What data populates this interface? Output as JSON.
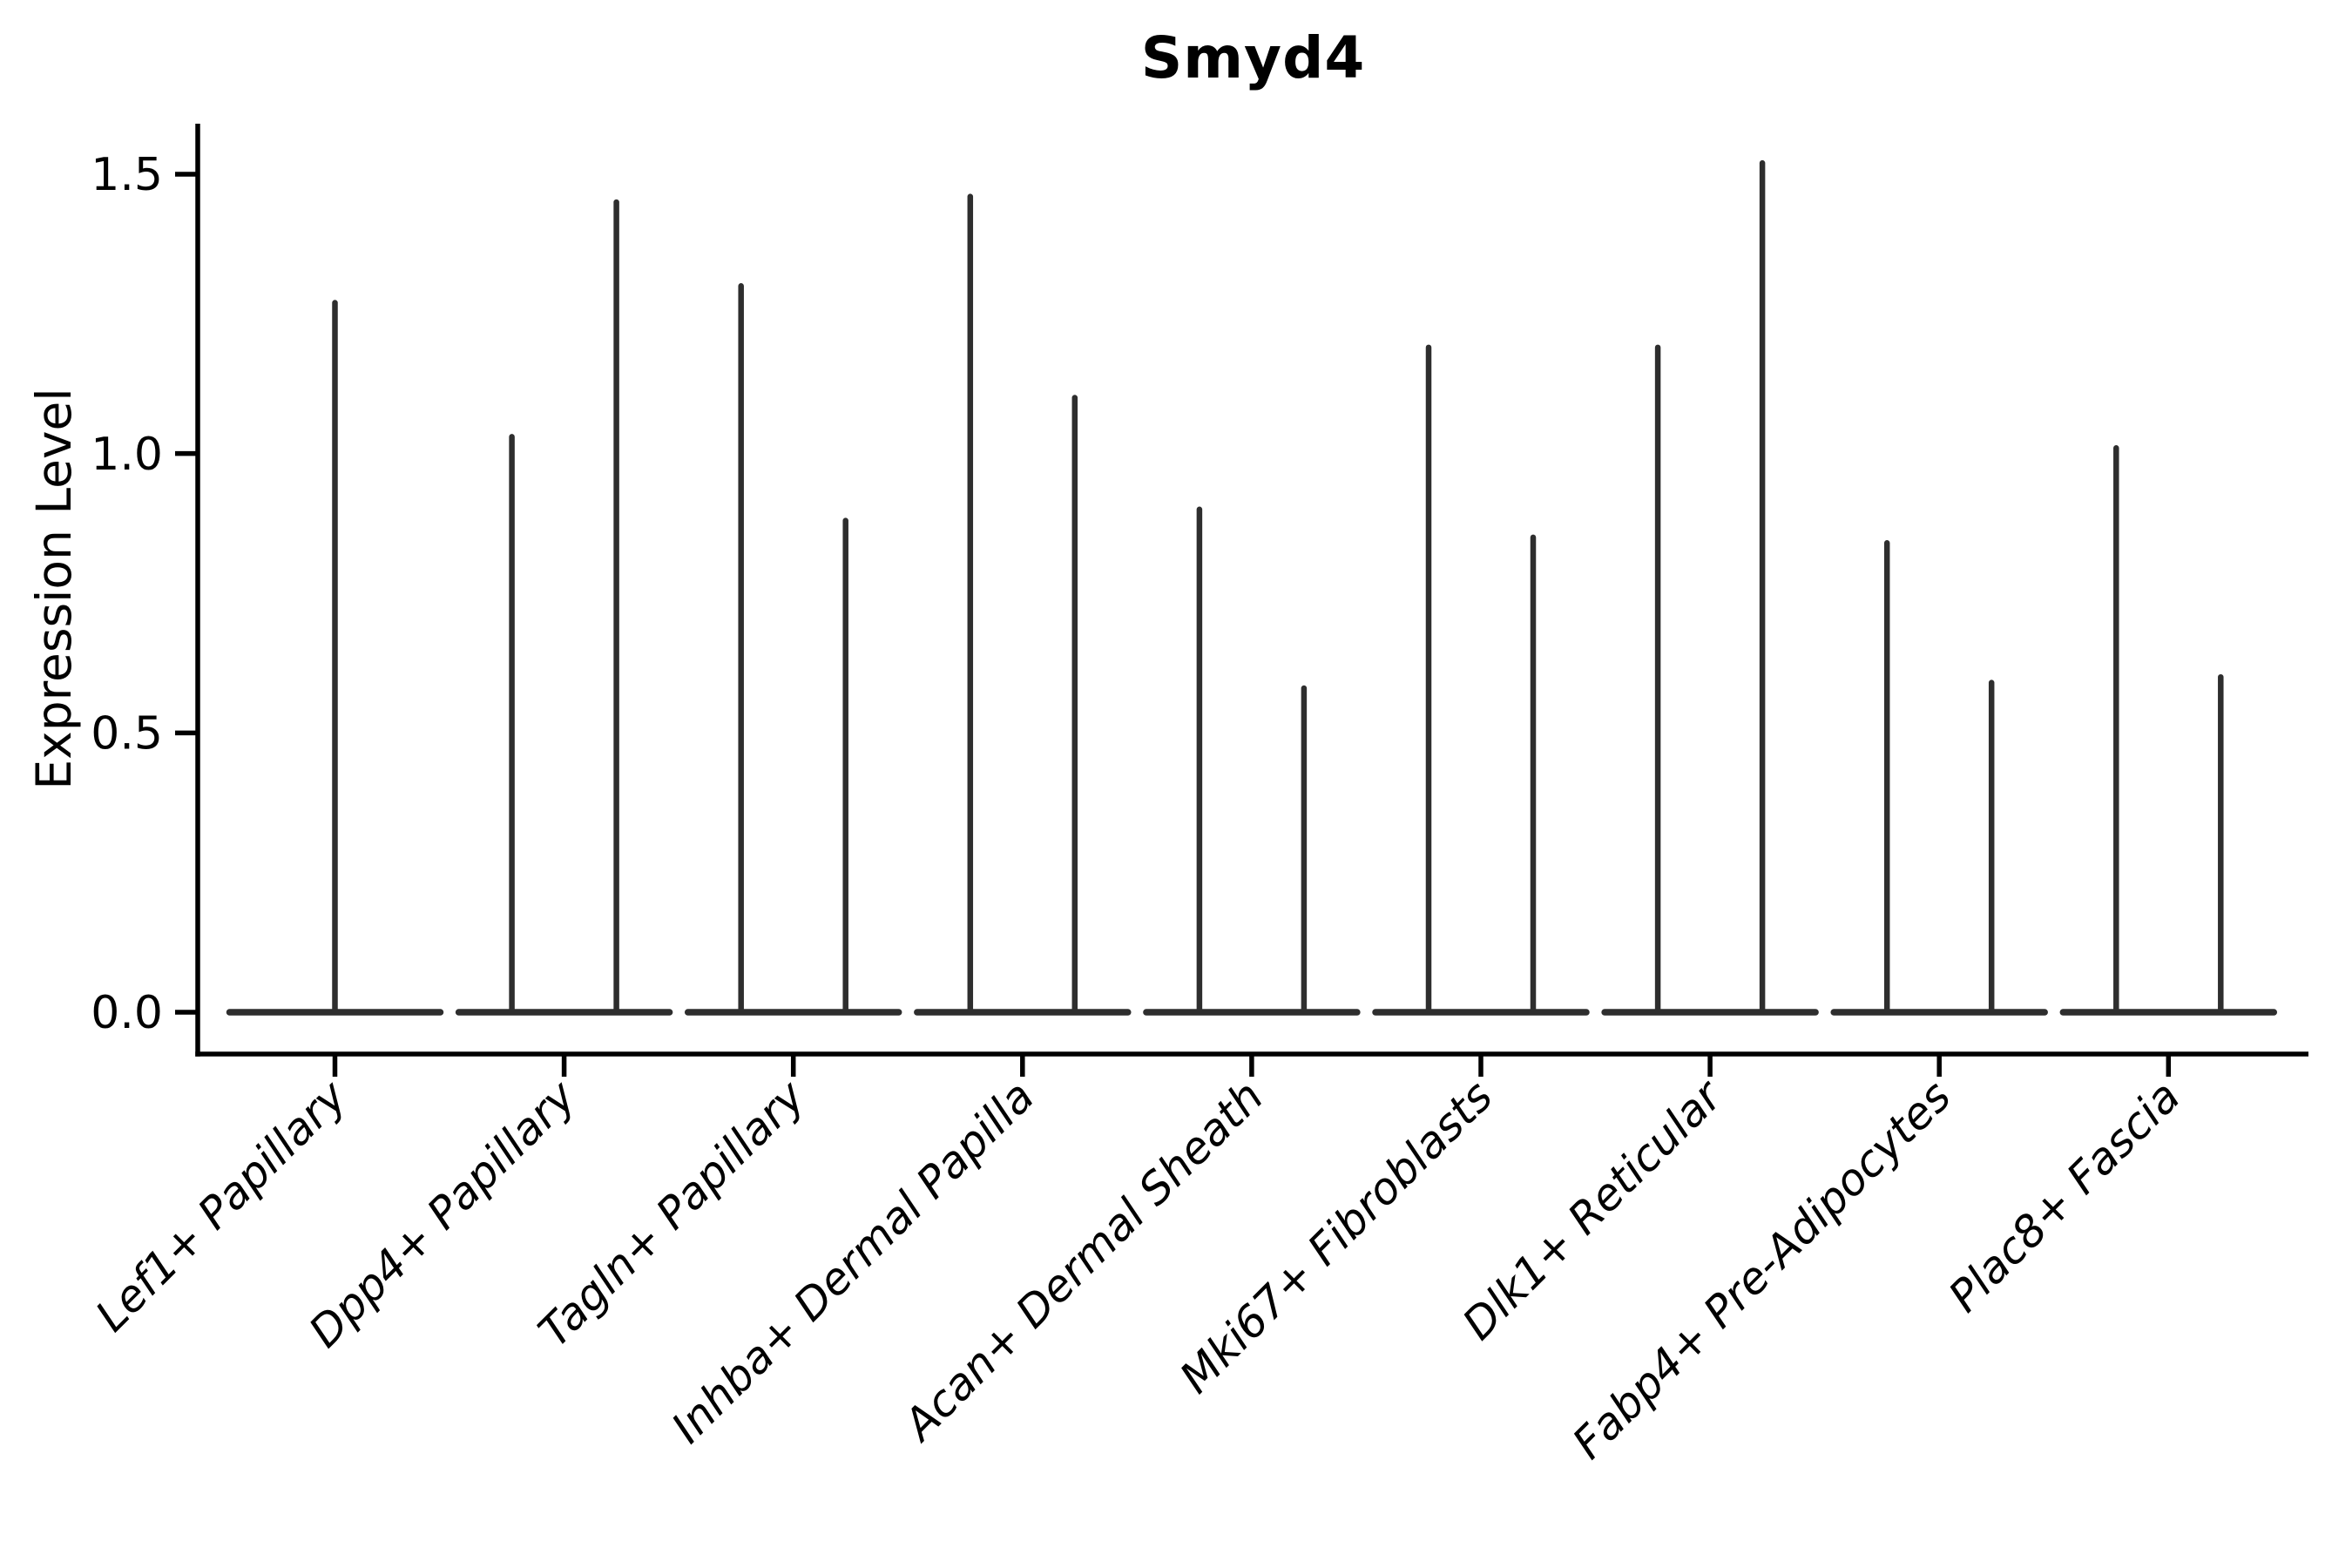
{
  "chart_data": {
    "type": "violin",
    "title": "Smyd4",
    "ylabel": "Expression Level",
    "xlabel": "",
    "grid": false,
    "legend": null,
    "x_tick_rotation_deg": 45,
    "ylim": [
      0,
      1.59
    ],
    "ytick_values": [
      0,
      0.5,
      1.0,
      1.5
    ],
    "yticks": [
      "0.0",
      "0.5",
      "1.0",
      "1.5"
    ],
    "ink_color": "#2e2e2e",
    "axis_color": "#000000",
    "violins": [
      {
        "category": "Lef1+ Papillary",
        "maxima": [
          1.27
        ]
      },
      {
        "category": "Dpp4+ Papillary",
        "maxima": [
          1.03,
          1.45
        ]
      },
      {
        "category": "Tagln+ Papillary",
        "maxima": [
          1.3,
          0.88
        ]
      },
      {
        "category": "Inhba+ Dermal Papilla",
        "maxima": [
          1.46,
          1.1
        ]
      },
      {
        "category": "Acan+ Dermal Sheath",
        "maxima": [
          0.9,
          0.58
        ]
      },
      {
        "category": "Mki67+ Fibroblasts",
        "maxima": [
          1.19,
          0.85
        ]
      },
      {
        "category": "Dlk1+ Reticular",
        "maxima": [
          1.19,
          1.52
        ]
      },
      {
        "category": "Fabp4+ Pre-Adipocytes",
        "maxima": [
          0.84,
          0.59
        ]
      },
      {
        "category": "Plac8+ Fascia",
        "maxima": [
          1.01,
          0.6
        ]
      }
    ]
  }
}
